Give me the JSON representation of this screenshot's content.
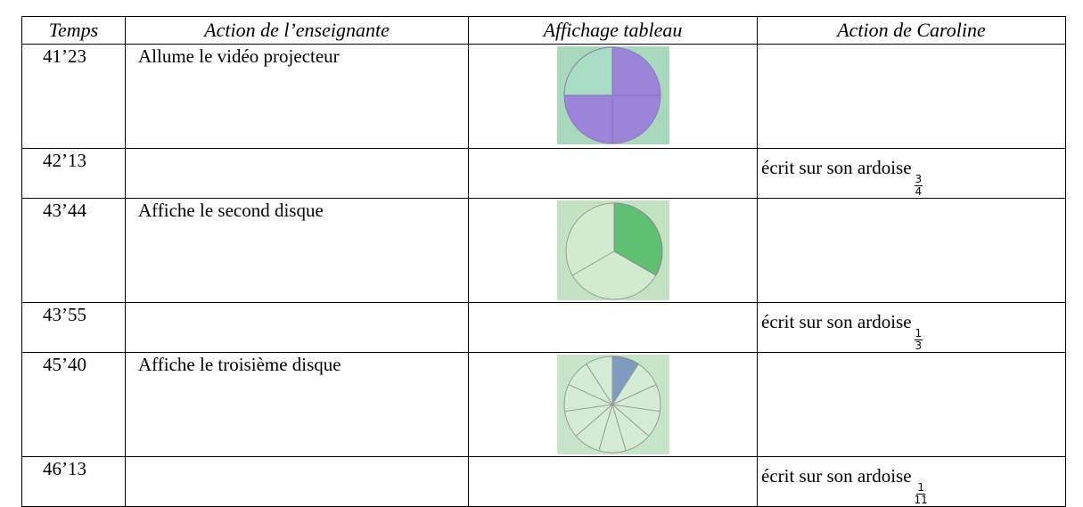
{
  "table": {
    "header": [
      "Temps",
      "Action de l’enseignante",
      "Affichage tableau",
      "Action de Caroline"
    ],
    "rows": [
      {
        "time": "41’23",
        "action": "Allume le vidéo projecteur"
      },
      {
        "time": "42’13",
        "caroline": {
          "text": "écrit sur son ardoise",
          "numerator": 3,
          "denominator": 4
        }
      },
      {
        "time": "43’44",
        "action": "Affiche le second disque"
      },
      {
        "time": "43’55",
        "caroline": {
          "text": "écrit sur son ardoise",
          "numerator": 1,
          "denominator": 3
        }
      },
      {
        "time": "45’40",
        "action": "Affiche le troisième disque"
      },
      {
        "time": "46’13",
        "caroline": {
          "text": "écrit sur son ardoise",
          "numerator": 1,
          "denominator": 11
        }
      }
    ]
  }
}
